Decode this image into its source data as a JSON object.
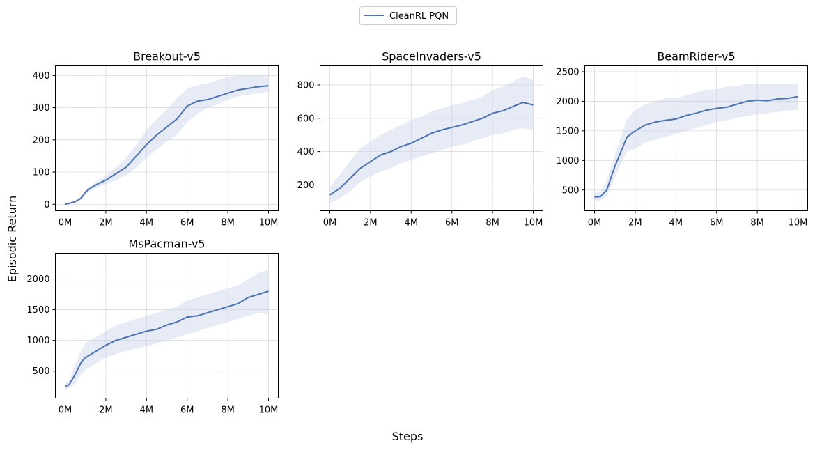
{
  "figure": {
    "legend_label": "CleanRL PQN",
    "xlabel": "Steps",
    "ylabel": "Episodic Return",
    "colors": {
      "line": "#4c72b0",
      "band": "#c8d2ea",
      "grid": "#d9d9d9"
    }
  },
  "chart_data": [
    {
      "type": "line",
      "title": "Breakout-v5",
      "xlim": [
        0,
        10
      ],
      "ylim": [
        -20,
        430
      ],
      "xticks": [
        0,
        2,
        4,
        6,
        8,
        10
      ],
      "xtick_labels": [
        "0M",
        "2M",
        "4M",
        "6M",
        "8M",
        "10M"
      ],
      "yticks": [
        0,
        100,
        200,
        300,
        400
      ],
      "ytick_labels": [
        "0",
        "100",
        "200",
        "300",
        "400"
      ],
      "series": [
        {
          "name": "CleanRL PQN",
          "x": [
            0,
            0.5,
            0.8,
            1,
            1.2,
            1.5,
            2,
            2.5,
            3,
            3.5,
            4,
            4.5,
            5,
            5.5,
            6,
            6.5,
            7,
            7.5,
            8,
            8.5,
            9,
            9.5,
            10
          ],
          "y": [
            0,
            8,
            20,
            38,
            48,
            60,
            75,
            95,
            115,
            150,
            185,
            215,
            240,
            265,
            305,
            320,
            325,
            335,
            345,
            355,
            360,
            365,
            368
          ],
          "lower": [
            0,
            6,
            15,
            30,
            40,
            50,
            62,
            75,
            90,
            115,
            145,
            170,
            195,
            215,
            255,
            280,
            300,
            310,
            325,
            335,
            340,
            345,
            350
          ],
          "upper": [
            0,
            10,
            25,
            45,
            56,
            70,
            90,
            115,
            145,
            185,
            230,
            265,
            295,
            330,
            360,
            370,
            375,
            385,
            395,
            400,
            400,
            400,
            400
          ]
        }
      ]
    },
    {
      "type": "line",
      "title": "SpaceInvaders-v5",
      "xlim": [
        0,
        10
      ],
      "ylim": [
        45,
        915
      ],
      "xticks": [
        0,
        2,
        4,
        6,
        8,
        10
      ],
      "xtick_labels": [
        "0M",
        "2M",
        "4M",
        "6M",
        "8M",
        "10M"
      ],
      "yticks": [
        200,
        400,
        600,
        800
      ],
      "ytick_labels": [
        "200",
        "400",
        "600",
        "800"
      ],
      "series": [
        {
          "name": "CleanRL PQN",
          "x": [
            0,
            0.5,
            1,
            1.5,
            2,
            2.5,
            3,
            3.5,
            4,
            4.5,
            5,
            5.5,
            6,
            6.5,
            7,
            7.5,
            8,
            8.5,
            9,
            9.5,
            10
          ],
          "y": [
            140,
            180,
            240,
            300,
            340,
            380,
            400,
            430,
            450,
            480,
            510,
            530,
            545,
            560,
            580,
            600,
            630,
            645,
            670,
            695,
            680
          ],
          "lower": [
            90,
            120,
            160,
            220,
            250,
            280,
            300,
            330,
            350,
            370,
            390,
            410,
            430,
            440,
            460,
            480,
            500,
            510,
            530,
            540,
            530
          ],
          "upper": [
            190,
            260,
            340,
            420,
            460,
            500,
            530,
            560,
            590,
            610,
            640,
            660,
            680,
            690,
            710,
            730,
            770,
            790,
            820,
            850,
            830
          ]
        }
      ]
    },
    {
      "type": "line",
      "title": "BeamRider-v5",
      "xlim": [
        0,
        10
      ],
      "ylim": [
        150,
        2600
      ],
      "xticks": [
        0,
        2,
        4,
        6,
        8,
        10
      ],
      "xtick_labels": [
        "0M",
        "2M",
        "4M",
        "6M",
        "8M",
        "10M"
      ],
      "yticks": [
        500,
        1000,
        1500,
        2000,
        2500
      ],
      "ytick_labels": [
        "500",
        "1000",
        "1500",
        "2000",
        "2500"
      ],
      "series": [
        {
          "name": "CleanRL PQN",
          "x": [
            0,
            0.3,
            0.6,
            1,
            1.3,
            1.6,
            2,
            2.5,
            3,
            3.5,
            4,
            4.5,
            5,
            5.5,
            6,
            6.5,
            7,
            7.5,
            8,
            8.5,
            9,
            9.5,
            10
          ],
          "y": [
            380,
            390,
            500,
            900,
            1150,
            1400,
            1500,
            1600,
            1650,
            1680,
            1700,
            1760,
            1800,
            1850,
            1880,
            1900,
            1950,
            2000,
            2020,
            2010,
            2040,
            2050,
            2080
          ],
          "lower": [
            300,
            320,
            400,
            700,
            950,
            1150,
            1200,
            1300,
            1350,
            1400,
            1450,
            1500,
            1550,
            1600,
            1650,
            1680,
            1720,
            1750,
            1780,
            1800,
            1820,
            1840,
            1860
          ],
          "upper": [
            450,
            480,
            650,
            1100,
            1400,
            1700,
            1850,
            1950,
            2000,
            2050,
            2050,
            2100,
            2150,
            2200,
            2200,
            2250,
            2250,
            2300,
            2300,
            2300,
            2300,
            2300,
            2300
          ]
        }
      ]
    },
    {
      "type": "line",
      "title": "MsPacman-v5",
      "xlim": [
        0,
        10
      ],
      "ylim": [
        60,
        2420
      ],
      "xticks": [
        0,
        2,
        4,
        6,
        8,
        10
      ],
      "xtick_labels": [
        "0M",
        "2M",
        "4M",
        "6M",
        "8M",
        "10M"
      ],
      "yticks": [
        500,
        1000,
        1500,
        2000
      ],
      "ytick_labels": [
        "500",
        "1000",
        "1500",
        "2000"
      ],
      "series": [
        {
          "name": "CleanRL PQN",
          "x": [
            0,
            0.2,
            0.5,
            0.8,
            1,
            1.5,
            2,
            2.5,
            3,
            3.5,
            4,
            4.5,
            5,
            5.5,
            6,
            6.5,
            7,
            7.5,
            8,
            8.5,
            9,
            9.5,
            10
          ],
          "y": [
            250,
            280,
            450,
            650,
            720,
            820,
            920,
            1000,
            1050,
            1100,
            1150,
            1180,
            1250,
            1300,
            1380,
            1400,
            1450,
            1500,
            1550,
            1600,
            1700,
            1750,
            1800
          ],
          "lower": [
            200,
            220,
            300,
            450,
            520,
            620,
            720,
            780,
            830,
            870,
            900,
            950,
            1000,
            1050,
            1100,
            1150,
            1200,
            1250,
            1300,
            1350,
            1400,
            1450,
            1420
          ],
          "upper": [
            300,
            350,
            600,
            850,
            950,
            1050,
            1150,
            1250,
            1300,
            1350,
            1400,
            1450,
            1500,
            1550,
            1650,
            1700,
            1750,
            1800,
            1850,
            1900,
            2000,
            2100,
            2150
          ]
        }
      ]
    }
  ]
}
